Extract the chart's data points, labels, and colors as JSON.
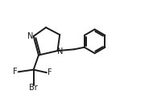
{
  "bg_color": "#ffffff",
  "line_color": "#1a1a1a",
  "line_width": 1.4,
  "font_size": 7.0,
  "fig_width": 1.9,
  "fig_height": 1.28,
  "dpi": 100,
  "xlim": [
    0,
    10
  ],
  "ylim": [
    0,
    7
  ]
}
